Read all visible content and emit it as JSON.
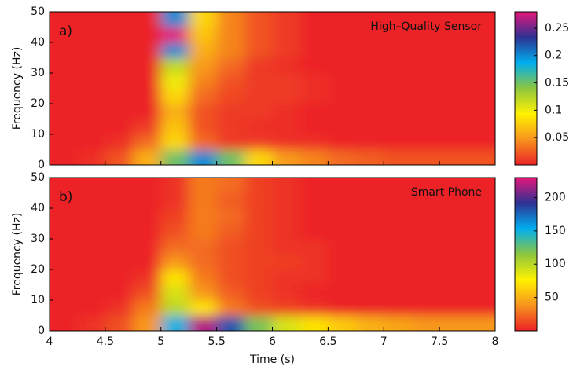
{
  "chart_data": [
    {
      "type": "heatmap",
      "panel_label": "a)",
      "annotation": "High–Quality Sensor",
      "ylabel": "Frequency (Hz)",
      "show_xtick_labels": false,
      "show_xlabel": false,
      "xlim": [
        4,
        8
      ],
      "xticks": [
        4,
        4.5,
        5,
        5.5,
        6,
        6.5,
        7,
        7.5,
        8
      ],
      "ylim": [
        0,
        50
      ],
      "yticks": [
        0,
        10,
        20,
        30,
        40,
        50
      ],
      "x": [
        4.125,
        4.375,
        4.625,
        4.875,
        5.125,
        5.375,
        5.625,
        5.875,
        6.125,
        6.375,
        6.625,
        6.875,
        7.125,
        7.375,
        7.625,
        7.875
      ],
      "y": [
        2.5,
        7.5,
        12.5,
        17.5,
        22.5,
        27.5,
        32.5,
        37.5,
        42.5,
        47.5
      ],
      "z": [
        [
          0,
          0.005,
          0.02,
          0.06,
          0.15,
          0.2,
          0.15,
          0.08,
          0.05,
          0.04,
          0.03,
          0.025,
          0.02,
          0.02,
          0.02,
          0.02
        ],
        [
          0,
          0,
          0.005,
          0.03,
          0.08,
          0.03,
          0.01,
          0.01,
          0.005,
          0.005,
          0,
          0,
          0,
          0,
          0,
          0
        ],
        [
          0,
          0,
          0,
          0.01,
          0.07,
          0.02,
          0.01,
          0.005,
          0.005,
          0,
          0,
          0,
          0,
          0,
          0,
          0
        ],
        [
          0,
          0,
          0,
          0,
          0.06,
          0.02,
          0.01,
          0.01,
          0.005,
          0,
          0,
          0,
          0,
          0,
          0,
          0
        ],
        [
          0,
          0,
          0,
          0,
          0.08,
          0.03,
          0.015,
          0.01,
          0.01,
          0.005,
          0,
          0,
          0,
          0,
          0,
          0
        ],
        [
          0,
          0,
          0,
          0,
          0.1,
          0.04,
          0.02,
          0.01,
          0.01,
          0.005,
          0,
          0,
          0,
          0,
          0,
          0
        ],
        [
          0,
          0,
          0,
          0,
          0.12,
          0.05,
          0.03,
          0.01,
          0.005,
          0,
          0,
          0,
          0,
          0,
          0,
          0
        ],
        [
          0,
          0,
          0,
          0,
          0.2,
          0.06,
          0.04,
          0.02,
          0.01,
          0,
          0,
          0,
          0,
          0,
          0,
          0
        ],
        [
          0,
          0,
          0,
          0,
          0.28,
          0.07,
          0.04,
          0.02,
          0.01,
          0,
          0,
          0,
          0,
          0,
          0,
          0
        ],
        [
          0,
          0,
          0,
          0,
          0.2,
          0.08,
          0.04,
          0.02,
          0.01,
          0,
          0,
          0,
          0,
          0,
          0,
          0
        ]
      ],
      "zlim": [
        0,
        0.28
      ],
      "zticks": [
        0.05,
        0.1,
        0.15,
        0.2,
        0.25
      ],
      "colorscale": [
        "#ec2227",
        "#f7941d",
        "#fff200",
        "#8dc63f",
        "#00aeef",
        "#2e3192",
        "#e6177a"
      ]
    },
    {
      "type": "heatmap",
      "panel_label": "b)",
      "annotation": "Smart Phone",
      "ylabel": "Frequency (Hz)",
      "xlabel": "Time (s)",
      "show_xtick_labels": true,
      "show_xlabel": true,
      "xlim": [
        4,
        8
      ],
      "xticks": [
        4,
        4.5,
        5,
        5.5,
        6,
        6.5,
        7,
        7.5,
        8
      ],
      "ylim": [
        0,
        50
      ],
      "yticks": [
        0,
        10,
        20,
        30,
        40,
        50
      ],
      "x": [
        4.125,
        4.375,
        4.625,
        4.875,
        5.125,
        5.375,
        5.625,
        5.875,
        6.125,
        6.375,
        6.625,
        6.875,
        7.125,
        7.375,
        7.625,
        7.875
      ],
      "y": [
        2.5,
        7.5,
        12.5,
        17.5,
        22.5,
        27.5,
        32.5,
        37.5,
        42.5,
        47.5
      ],
      "z": [
        [
          0,
          5,
          15,
          40,
          150,
          220,
          180,
          120,
          90,
          70,
          60,
          50,
          45,
          40,
          40,
          40
        ],
        [
          0,
          0,
          5,
          30,
          100,
          70,
          30,
          15,
          10,
          5,
          0,
          0,
          0,
          0,
          0,
          0
        ],
        [
          0,
          0,
          0,
          15,
          90,
          40,
          20,
          10,
          5,
          0,
          0,
          0,
          0,
          0,
          0,
          0
        ],
        [
          0,
          0,
          0,
          5,
          70,
          30,
          15,
          10,
          5,
          5,
          0,
          0,
          0,
          0,
          0,
          0
        ],
        [
          0,
          0,
          0,
          0,
          40,
          25,
          15,
          10,
          10,
          5,
          0,
          0,
          0,
          0,
          0,
          0
        ],
        [
          0,
          0,
          0,
          0,
          25,
          25,
          15,
          10,
          5,
          5,
          0,
          0,
          0,
          0,
          0,
          0
        ],
        [
          0,
          0,
          0,
          0,
          15,
          30,
          20,
          10,
          5,
          0,
          0,
          0,
          0,
          0,
          0,
          0
        ],
        [
          0,
          0,
          0,
          0,
          10,
          30,
          25,
          10,
          5,
          0,
          0,
          0,
          0,
          0,
          0,
          0
        ],
        [
          0,
          0,
          0,
          0,
          5,
          30,
          20,
          10,
          5,
          0,
          0,
          0,
          0,
          0,
          0,
          0
        ],
        [
          0,
          0,
          0,
          0,
          5,
          30,
          25,
          10,
          5,
          0,
          0,
          0,
          0,
          0,
          0,
          0
        ]
      ],
      "zlim": [
        0,
        230
      ],
      "zticks": [
        50,
        100,
        150,
        200
      ],
      "colorscale": [
        "#ec2227",
        "#f7941d",
        "#fff200",
        "#8dc63f",
        "#00aeef",
        "#2e3192",
        "#e6177a"
      ]
    }
  ]
}
